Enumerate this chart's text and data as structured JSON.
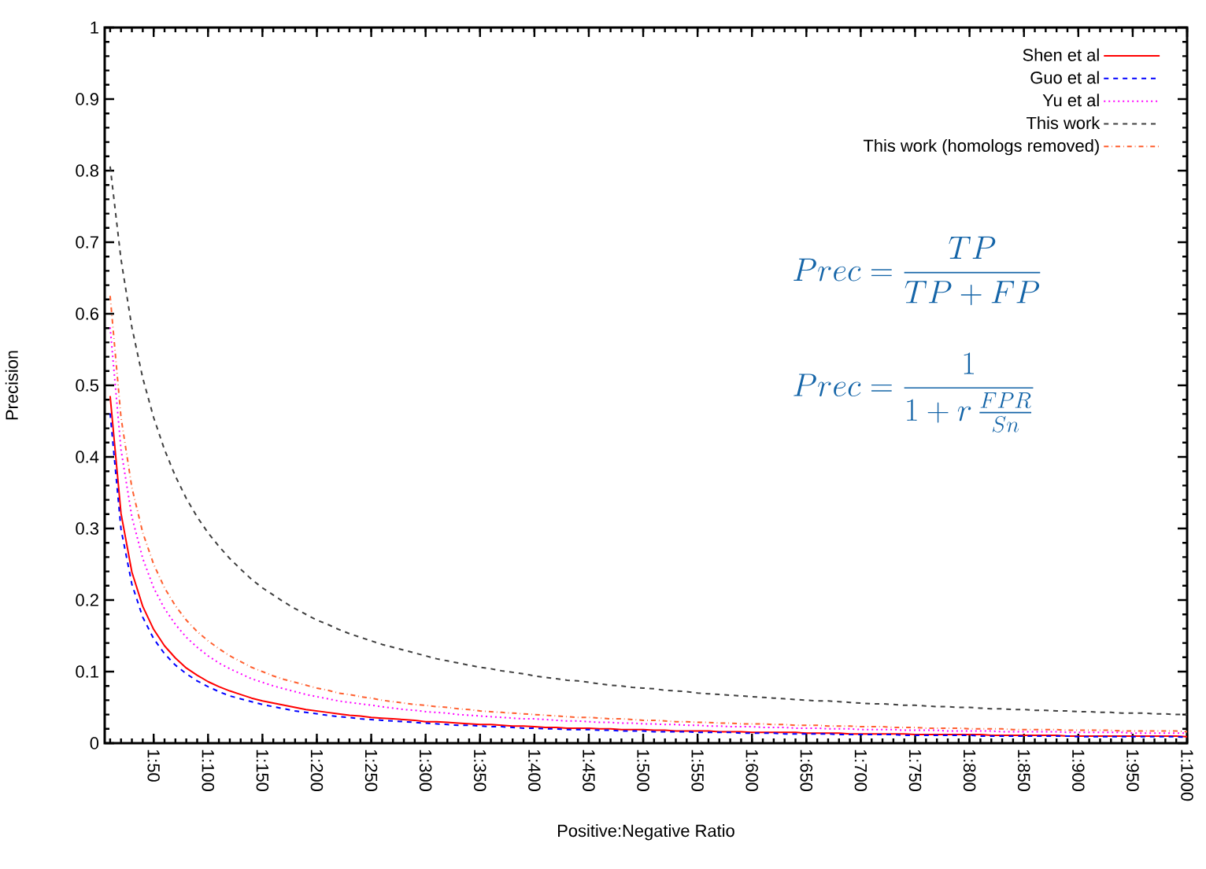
{
  "chart_data": {
    "type": "line",
    "xlabel": "Positive:Negative Ratio",
    "ylabel": "Precision",
    "categories": [
      null,
      null,
      null,
      null,
      "1:50",
      null,
      null,
      null,
      null,
      "1:100",
      null,
      null,
      null,
      null,
      "1:150",
      null,
      null,
      null,
      null,
      "1:200",
      null,
      null,
      null,
      null,
      "1:250",
      null,
      null,
      null,
      null,
      "1:300",
      null,
      null,
      null,
      null,
      "1:350",
      null,
      null,
      null,
      null,
      "1:400",
      null,
      null,
      null,
      null,
      "1:450",
      null,
      null,
      null,
      null,
      "1:500",
      null,
      null,
      null,
      null,
      "1:550",
      null,
      null,
      null,
      null,
      "1:600",
      null,
      null,
      null,
      null,
      "1:650",
      null,
      null,
      null,
      null,
      "1:700",
      null,
      null,
      null,
      null,
      "1:750",
      null,
      null,
      null,
      null,
      "1:800",
      null,
      null,
      null,
      null,
      "1:850",
      null,
      null,
      null,
      null,
      "1:900",
      null,
      null,
      null,
      null,
      "1:950",
      null,
      null,
      null,
      null,
      "1:1000"
    ],
    "series": [
      {
        "name": "Shen et al",
        "color": "#ff0000",
        "line_style": "solid",
        "values": [
          0.485,
          0.321,
          0.239,
          0.191,
          0.159,
          0.136,
          0.119,
          0.105,
          0.095,
          0.086,
          0.079,
          0.073,
          0.068,
          0.063,
          0.059,
          0.056,
          0.053,
          0.05,
          0.047,
          0.045,
          0.043,
          0.041,
          0.039,
          0.038,
          0.036,
          0.035,
          0.034,
          0.033,
          0.032,
          0.03,
          0.03,
          0.029,
          0.028,
          0.027,
          0.026,
          0.026,
          0.025,
          0.024,
          0.024,
          0.023,
          0.022,
          0.022,
          0.021,
          0.021,
          0.021,
          0.02,
          0.02,
          0.019,
          0.019,
          0.019,
          0.018,
          0.018,
          0.017,
          0.017,
          0.017,
          0.017,
          0.016,
          0.016,
          0.016,
          0.015,
          0.015,
          0.015,
          0.015,
          0.015,
          0.014,
          0.014,
          0.014,
          0.014,
          0.013,
          0.013,
          0.013,
          0.013,
          0.013,
          0.013,
          0.012,
          0.012,
          0.012,
          0.012,
          0.012,
          0.012,
          0.012,
          0.011,
          0.011,
          0.011,
          0.011,
          0.011,
          0.011,
          0.011,
          0.01,
          0.01,
          0.01,
          0.01,
          0.01,
          0.01,
          0.01,
          0.01,
          0.01,
          0.01,
          0.01,
          0.009
        ]
      },
      {
        "name": "Guo et al",
        "color": "#0000ff",
        "line_style": "dashed",
        "values": [
          0.461,
          0.299,
          0.222,
          0.176,
          0.146,
          0.125,
          0.109,
          0.097,
          0.087,
          0.079,
          0.072,
          0.066,
          0.062,
          0.058,
          0.054,
          0.051,
          0.048,
          0.045,
          0.043,
          0.041,
          0.039,
          0.037,
          0.036,
          0.034,
          0.033,
          0.032,
          0.031,
          0.03,
          0.029,
          0.028,
          0.027,
          0.026,
          0.025,
          0.025,
          0.024,
          0.023,
          0.023,
          0.022,
          0.021,
          0.021,
          0.02,
          0.02,
          0.019,
          0.019,
          0.019,
          0.018,
          0.018,
          0.017,
          0.017,
          0.017,
          0.016,
          0.016,
          0.016,
          0.016,
          0.015,
          0.015,
          0.015,
          0.015,
          0.014,
          0.014,
          0.014,
          0.014,
          0.013,
          0.013,
          0.013,
          0.013,
          0.013,
          0.012,
          0.012,
          0.012,
          0.012,
          0.012,
          0.012,
          0.011,
          0.011,
          0.011,
          0.011,
          0.011,
          0.011,
          0.011,
          0.01,
          0.01,
          0.01,
          0.01,
          0.01,
          0.01,
          0.01,
          0.01,
          0.01,
          0.009,
          0.009,
          0.009,
          0.009,
          0.009,
          0.009,
          0.009,
          0.009,
          0.009,
          0.009,
          0.008
        ]
      },
      {
        "name": "Yu et al",
        "color": "#ff00ff",
        "line_style": "dotted",
        "values": [
          0.581,
          0.41,
          0.316,
          0.258,
          0.217,
          0.188,
          0.166,
          0.148,
          0.134,
          0.122,
          0.112,
          0.104,
          0.097,
          0.09,
          0.085,
          0.08,
          0.076,
          0.072,
          0.068,
          0.065,
          0.062,
          0.059,
          0.057,
          0.055,
          0.053,
          0.051,
          0.049,
          0.047,
          0.046,
          0.044,
          0.043,
          0.042,
          0.04,
          0.039,
          0.038,
          0.037,
          0.036,
          0.035,
          0.034,
          0.034,
          0.033,
          0.032,
          0.031,
          0.031,
          0.03,
          0.029,
          0.029,
          0.028,
          0.028,
          0.027,
          0.027,
          0.026,
          0.026,
          0.025,
          0.025,
          0.024,
          0.024,
          0.023,
          0.023,
          0.023,
          0.022,
          0.022,
          0.022,
          0.021,
          0.021,
          0.021,
          0.02,
          0.02,
          0.02,
          0.019,
          0.019,
          0.019,
          0.019,
          0.018,
          0.018,
          0.018,
          0.018,
          0.017,
          0.017,
          0.017,
          0.017,
          0.017,
          0.016,
          0.016,
          0.016,
          0.016,
          0.016,
          0.016,
          0.015,
          0.015,
          0.015,
          0.015,
          0.015,
          0.015,
          0.014,
          0.014,
          0.014,
          0.014,
          0.014,
          0.014
        ]
      },
      {
        "name": "This work",
        "color": "#404040",
        "line_style": "dashed",
        "values": [
          0.806,
          0.676,
          0.581,
          0.51,
          0.455,
          0.41,
          0.373,
          0.342,
          0.316,
          0.294,
          0.275,
          0.258,
          0.243,
          0.229,
          0.217,
          0.207,
          0.197,
          0.188,
          0.18,
          0.172,
          0.166,
          0.159,
          0.153,
          0.148,
          0.143,
          0.138,
          0.134,
          0.13,
          0.126,
          0.122,
          0.118,
          0.115,
          0.112,
          0.109,
          0.106,
          0.104,
          0.101,
          0.099,
          0.097,
          0.094,
          0.092,
          0.09,
          0.088,
          0.087,
          0.085,
          0.083,
          0.081,
          0.08,
          0.078,
          0.077,
          0.076,
          0.074,
          0.073,
          0.072,
          0.07,
          0.069,
          0.068,
          0.067,
          0.066,
          0.065,
          0.064,
          0.063,
          0.062,
          0.061,
          0.06,
          0.059,
          0.059,
          0.058,
          0.057,
          0.056,
          0.055,
          0.055,
          0.054,
          0.053,
          0.053,
          0.052,
          0.051,
          0.051,
          0.05,
          0.05,
          0.049,
          0.048,
          0.048,
          0.047,
          0.047,
          0.046,
          0.046,
          0.045,
          0.045,
          0.044,
          0.044,
          0.043,
          0.043,
          0.042,
          0.042,
          0.042,
          0.041,
          0.041,
          0.04,
          0.04
        ]
      },
      {
        "name": "This work (homologs removed)",
        "color": "#ff6030",
        "line_style": "dashdot",
        "values": [
          0.625,
          0.455,
          0.357,
          0.294,
          0.25,
          0.217,
          0.192,
          0.172,
          0.156,
          0.143,
          0.132,
          0.122,
          0.114,
          0.106,
          0.1,
          0.094,
          0.089,
          0.085,
          0.081,
          0.077,
          0.074,
          0.07,
          0.068,
          0.065,
          0.063,
          0.06,
          0.058,
          0.056,
          0.054,
          0.053,
          0.051,
          0.05,
          0.048,
          0.047,
          0.045,
          0.044,
          0.043,
          0.042,
          0.041,
          0.04,
          0.039,
          0.038,
          0.037,
          0.036,
          0.036,
          0.035,
          0.034,
          0.034,
          0.033,
          0.032,
          0.032,
          0.031,
          0.03,
          0.03,
          0.029,
          0.029,
          0.028,
          0.028,
          0.027,
          0.027,
          0.027,
          0.026,
          0.026,
          0.025,
          0.025,
          0.025,
          0.024,
          0.024,
          0.024,
          0.023,
          0.023,
          0.023,
          0.022,
          0.022,
          0.022,
          0.021,
          0.021,
          0.021,
          0.021,
          0.02,
          0.02,
          0.02,
          0.02,
          0.019,
          0.019,
          0.019,
          0.019,
          0.019,
          0.018,
          0.018,
          0.018,
          0.018,
          0.018,
          0.017,
          0.017,
          0.017,
          0.017,
          0.017,
          0.017,
          0.016
        ]
      }
    ],
    "ylim": [
      0,
      1
    ],
    "yticks": [
      0,
      0.1,
      0.2,
      0.3,
      0.4,
      0.5,
      0.6,
      0.7,
      0.8,
      0.9,
      1
    ],
    "legend": "top right",
    "annotations": [
      "Prec = \\frac{TP}{TP + FP}",
      "Prec = \\frac{1}{1 + r\\,\\frac{FPR}{Sn}}"
    ]
  }
}
